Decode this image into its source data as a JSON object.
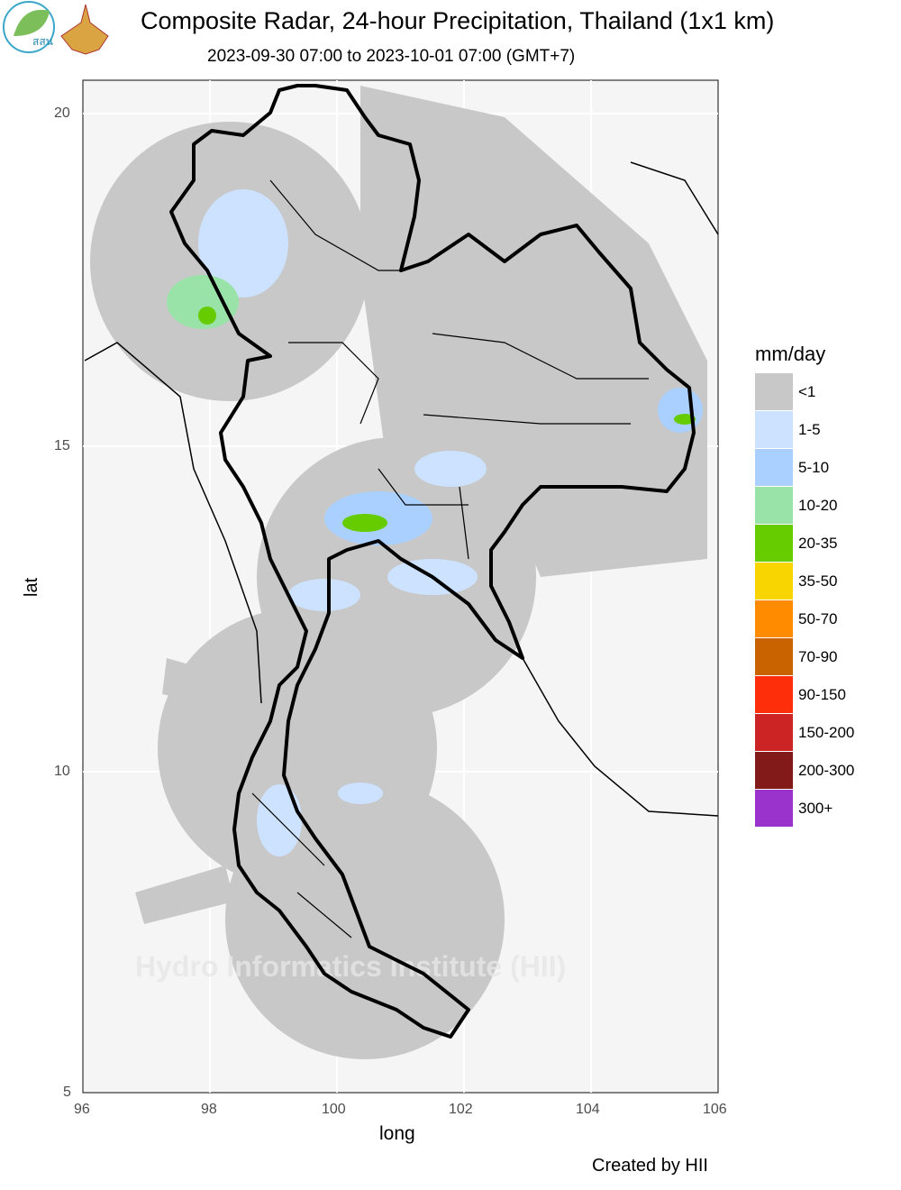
{
  "header": {
    "title": "Composite Radar, 24-hour Precipitation, Thailand (1x1 km)",
    "subtitle": "2023-09-30 07:00 to 2023-10-01 07:00 (GMT+7)",
    "logos": [
      "สสน",
      "royal-emblem"
    ]
  },
  "axes": {
    "xlabel": "long",
    "ylabel": "lat",
    "x_ticks": [
      "96",
      "98",
      "100",
      "102",
      "104",
      "106"
    ],
    "y_ticks": [
      "20",
      "15",
      "10",
      "5"
    ],
    "x_range": [
      96,
      106
    ],
    "y_range": [
      5,
      20.5
    ]
  },
  "watermark": "Hydro Informatics Institute (HII)",
  "credit": "Created by HII",
  "legend": {
    "title": "mm/day",
    "items": [
      {
        "label": "<1",
        "color": "#C8C8C8"
      },
      {
        "label": "1-5",
        "color": "#CCE2FF"
      },
      {
        "label": "5-10",
        "color": "#AAD0FF"
      },
      {
        "label": "10-20",
        "color": "#99E3A8"
      },
      {
        "label": "20-35",
        "color": "#66CC00"
      },
      {
        "label": "35-50",
        "color": "#F8D500"
      },
      {
        "label": "50-70",
        "color": "#FF8C00"
      },
      {
        "label": "70-90",
        "color": "#C96300"
      },
      {
        "label": "90-150",
        "color": "#FF2E0A"
      },
      {
        "label": "150-200",
        "color": "#CC2424"
      },
      {
        "label": "200-300",
        "color": "#821A1A"
      },
      {
        "label": "300+",
        "color": "#9933CC"
      }
    ]
  }
}
